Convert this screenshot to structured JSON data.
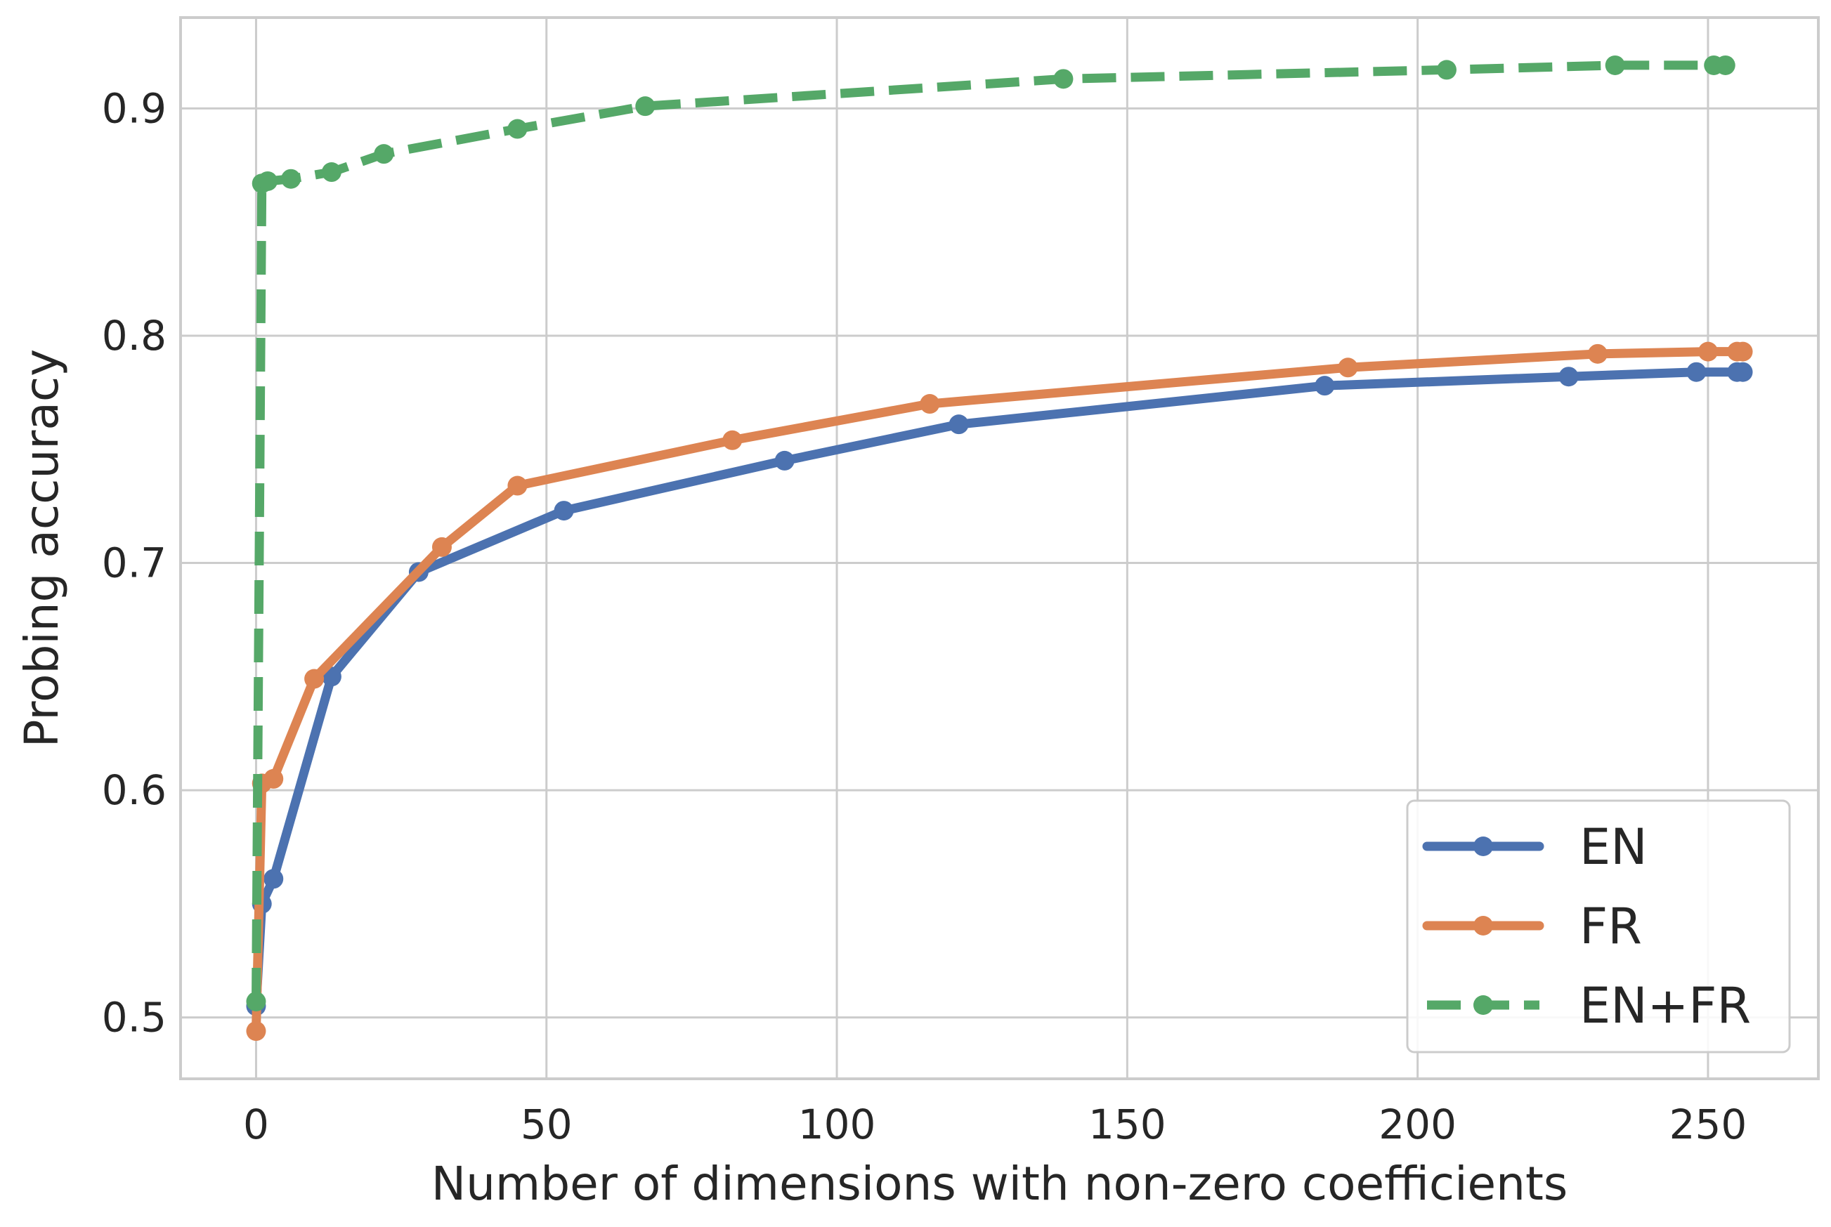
{
  "chart_data": {
    "type": "line",
    "title": "",
    "xlabel": "Number of dimensions with non-zero coefficients",
    "ylabel": "Probing accuracy",
    "xlim": [
      -13,
      269
    ],
    "ylim": [
      0.473,
      0.94
    ],
    "xticks": [
      0,
      50,
      100,
      150,
      200,
      250
    ],
    "xtick_labels": [
      "0",
      "50",
      "100",
      "150",
      "200",
      "250"
    ],
    "yticks": [
      0.5,
      0.6,
      0.7,
      0.8,
      0.9
    ],
    "ytick_labels": [
      "0.5",
      "0.6",
      "0.7",
      "0.8",
      "0.9"
    ],
    "grid": true,
    "legend_position": "lower-right",
    "series": [
      {
        "name": "EN",
        "color": "#4c72b0",
        "dashed": false,
        "x": [
          0,
          1,
          3,
          13,
          28,
          53,
          91,
          121,
          184,
          226,
          248,
          255,
          256
        ],
        "y": [
          0.505,
          0.55,
          0.561,
          0.65,
          0.696,
          0.723,
          0.745,
          0.761,
          0.778,
          0.782,
          0.784,
          0.784,
          0.784
        ]
      },
      {
        "name": "FR",
        "color": "#dd8452",
        "dashed": false,
        "x": [
          0,
          1,
          3,
          10,
          32,
          45,
          82,
          116,
          188,
          231,
          250,
          255,
          256
        ],
        "y": [
          0.494,
          0.603,
          0.605,
          0.649,
          0.707,
          0.734,
          0.754,
          0.77,
          0.786,
          0.792,
          0.793,
          0.793,
          0.793
        ]
      },
      {
        "name": "EN+FR",
        "color": "#55a868",
        "dashed": true,
        "x": [
          0,
          1,
          2,
          6,
          13,
          22,
          45,
          67,
          139,
          205,
          234,
          251,
          253
        ],
        "y": [
          0.507,
          0.867,
          0.868,
          0.869,
          0.872,
          0.88,
          0.891,
          0.901,
          0.913,
          0.917,
          0.919,
          0.919,
          0.919
        ]
      }
    ]
  }
}
